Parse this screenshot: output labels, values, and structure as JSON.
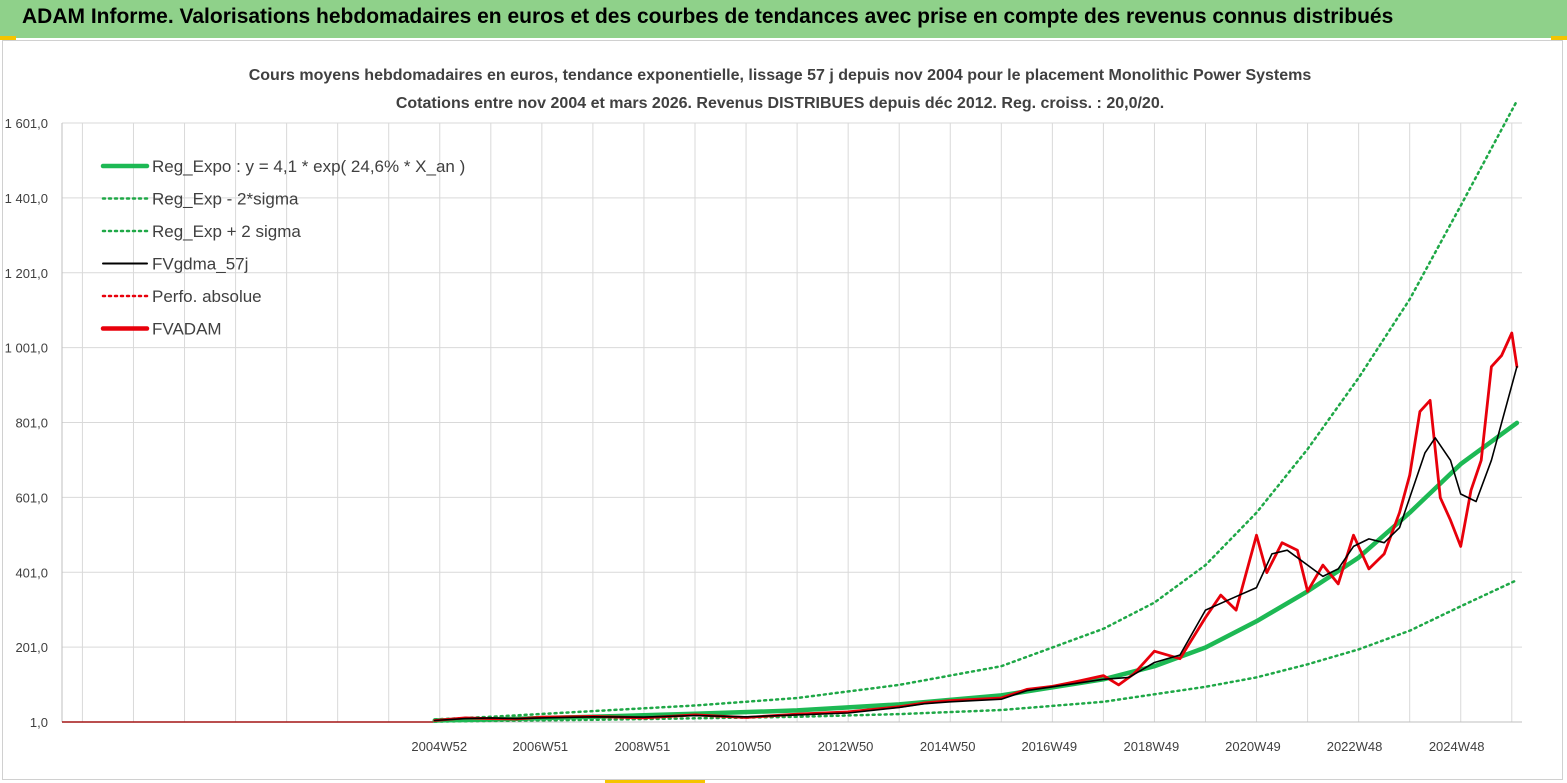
{
  "banner": {
    "title": "ADAM Informe. Valorisations hebdomadaires en euros et des courbes de tendances avec prise en compte des revenus connus distribués"
  },
  "colors": {
    "banner_bg": "#8fd18a",
    "reg_expo": "#1db954",
    "bands": "#1fa847",
    "fvgdma": "#000000",
    "perfo": "#e8000b",
    "fvadam": "#e8000b",
    "grid": "#d9d9d9",
    "accent": "#f5c400"
  },
  "chart_data": {
    "type": "line",
    "title": "Cours moyens hebdomadaires en euros, tendance exponentielle, lissage 57 j depuis nov 2004  pour le placement Monolithic Power Systems",
    "subtitle": "Cotations entre nov 2004 et mars 2026. Revenus DISTRIBUES depuis déc 2012. Reg. croiss. : 20,0/20.",
    "xlabel": "",
    "ylabel": "",
    "ylim": [
      1,
      1601
    ],
    "y_ticks": [
      "1,0",
      "201,0",
      "401,0",
      "601,0",
      "801,0",
      "1 001,0",
      "1 201,0",
      "1 401,0",
      "1 601,0"
    ],
    "x_tick_labels": [
      "2004W52",
      "2006W51",
      "2008W51",
      "2010W50",
      "2012W50",
      "2014W50",
      "2016W49",
      "2018W49",
      "2020W49",
      "2022W48",
      "2024W48"
    ],
    "x_range_years": [
      1997.6,
      2026.2
    ],
    "x_tick_years": [
      2004.99,
      2006.97,
      2008.97,
      2010.95,
      2012.95,
      2014.95,
      2016.94,
      2018.94,
      2020.93,
      2022.92,
      2024.92
    ],
    "grid": true,
    "legend_position": "top-left",
    "legend": [
      {
        "label": "Reg_Expo : y = 4,1 * exp( 24,6% *  X_an )",
        "color": "#1db954",
        "style": "solid-thick"
      },
      {
        "label": "Reg_Exp - 2*sigma",
        "color": "#1fa847",
        "style": "dotted"
      },
      {
        "label": "Reg_Exp + 2 sigma",
        "color": "#1fa847",
        "style": "dotted"
      },
      {
        "label": "FVgdma_57j",
        "color": "#000000",
        "style": "solid"
      },
      {
        "label": "Perfo. absolue",
        "color": "#e8000b",
        "style": "dotted"
      },
      {
        "label": "FVADAM",
        "color": "#e8000b",
        "style": "solid-thick"
      }
    ],
    "series": [
      {
        "name": "Reg_Expo : y = 4,1 * exp( 24,6% *  X_an )",
        "x": [
          2004.9,
          2006,
          2008,
          2010,
          2012,
          2014,
          2016,
          2018,
          2019,
          2020,
          2021,
          2022,
          2023,
          2024,
          2025,
          2026.1
        ],
        "y": [
          5,
          8,
          15,
          23,
          32,
          48,
          72,
          115,
          150,
          200,
          270,
          350,
          440,
          560,
          690,
          800
        ]
      },
      {
        "name": "Reg_Exp - 2*sigma",
        "x": [
          2004.9,
          2006,
          2008,
          2010,
          2012,
          2014,
          2016,
          2018,
          2020,
          2021,
          2022,
          2023,
          2024,
          2025,
          2026.1
        ],
        "y": [
          2,
          4,
          7,
          11,
          15,
          22,
          33,
          55,
          95,
          120,
          155,
          195,
          245,
          310,
          380
        ]
      },
      {
        "name": "Reg_Exp + 2 sigma",
        "x": [
          2004.9,
          2006,
          2008,
          2010,
          2012,
          2014,
          2016,
          2018,
          2019,
          2020,
          2021,
          2022,
          2023,
          2024,
          2025,
          2026.1
        ],
        "y": [
          8,
          15,
          30,
          45,
          65,
          100,
          150,
          250,
          320,
          420,
          560,
          730,
          920,
          1130,
          1380,
          1660
        ]
      },
      {
        "name": "FVgdma_57j",
        "x": [
          2004.9,
          2005.5,
          2006,
          2006.5,
          2007,
          2008,
          2009,
          2010,
          2011,
          2012,
          2013,
          2014,
          2014.5,
          2015,
          2016,
          2016.5,
          2017,
          2017.5,
          2018,
          2018.5,
          2019,
          2019.5,
          2020,
          2020.5,
          2021,
          2021.3,
          2021.6,
          2022,
          2022.3,
          2022.6,
          2022.9,
          2023.2,
          2023.5,
          2023.8,
          2024,
          2024.3,
          2024.5,
          2024.8,
          2025,
          2025.3,
          2025.6,
          2026.1
        ],
        "y": [
          5,
          10,
          12,
          10,
          12,
          15,
          14,
          18,
          15,
          20,
          25,
          40,
          50,
          55,
          62,
          85,
          95,
          105,
          115,
          120,
          160,
          180,
          300,
          330,
          360,
          450,
          460,
          420,
          390,
          410,
          470,
          490,
          480,
          520,
          600,
          720,
          760,
          700,
          610,
          590,
          700,
          950
        ]
      },
      {
        "name": "FVADAM",
        "x": [
          2004.9,
          2005.5,
          2006,
          2006.5,
          2007,
          2008,
          2009,
          2010,
          2011,
          2012,
          2013,
          2014,
          2014.5,
          2015,
          2016,
          2016.5,
          2017,
          2017.5,
          2018,
          2018.3,
          2018.6,
          2019,
          2019.5,
          2020,
          2020.3,
          2020.6,
          2021,
          2021.2,
          2021.5,
          2021.8,
          2022,
          2022.3,
          2022.6,
          2022.9,
          2023.2,
          2023.5,
          2023.8,
          2024,
          2024.2,
          2024.4,
          2024.6,
          2024.8,
          2025,
          2025.2,
          2025.4,
          2025.6,
          2025.8,
          2026,
          2026.1
        ],
        "y": [
          5,
          12,
          10,
          9,
          14,
          16,
          12,
          20,
          13,
          22,
          28,
          42,
          52,
          58,
          65,
          88,
          96,
          110,
          125,
          100,
          130,
          190,
          170,
          280,
          340,
          300,
          500,
          400,
          480,
          460,
          350,
          420,
          370,
          500,
          410,
          450,
          560,
          660,
          830,
          860,
          600,
          540,
          470,
          620,
          700,
          950,
          980,
          1040,
          950
        ]
      }
    ]
  }
}
